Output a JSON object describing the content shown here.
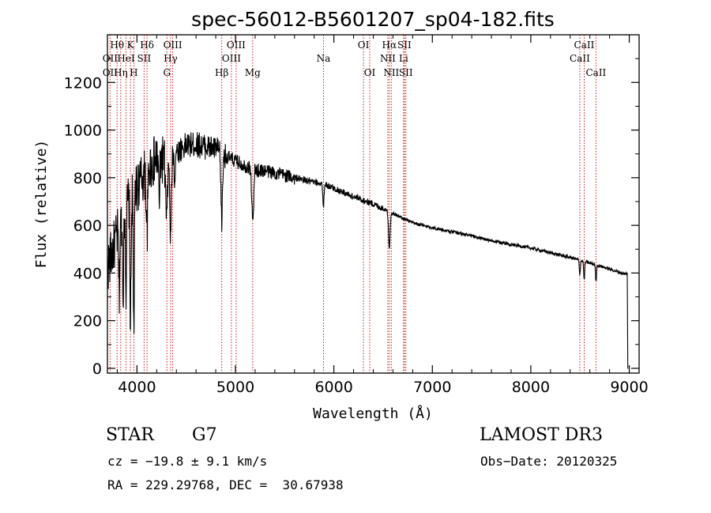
{
  "chart_data": {
    "type": "line",
    "title": "spec-56012-B5601207_sp04-182.fits",
    "xlabel": "Wavelength (Å)",
    "ylabel": "Flux (relative)",
    "xlim": [
      3700,
      9100
    ],
    "ylim": [
      -20,
      1400
    ],
    "x_ticks": [
      4000,
      5000,
      6000,
      7000,
      8000,
      9000
    ],
    "y_ticks": [
      0,
      200,
      400,
      600,
      800,
      1000,
      1200
    ],
    "series": [
      {
        "name": "flux",
        "continuum_knots": [
          [
            3700,
            420
          ],
          [
            3800,
            560
          ],
          [
            3900,
            700
          ],
          [
            4000,
            760
          ],
          [
            4100,
            830
          ],
          [
            4200,
            880
          ],
          [
            4300,
            880
          ],
          [
            4400,
            910
          ],
          [
            4500,
            935
          ],
          [
            4600,
            940
          ],
          [
            4700,
            930
          ],
          [
            4800,
            920
          ],
          [
            4900,
            890
          ],
          [
            5000,
            870
          ],
          [
            5100,
            850
          ],
          [
            5200,
            830
          ],
          [
            5300,
            830
          ],
          [
            5400,
            820
          ],
          [
            5500,
            810
          ],
          [
            5600,
            800
          ],
          [
            5700,
            790
          ],
          [
            5800,
            780
          ],
          [
            5900,
            775
          ],
          [
            6000,
            755
          ],
          [
            6200,
            720
          ],
          [
            6400,
            690
          ],
          [
            6600,
            650
          ],
          [
            6800,
            610
          ],
          [
            7000,
            590
          ],
          [
            7300,
            565
          ],
          [
            7600,
            535
          ],
          [
            8000,
            505
          ],
          [
            8400,
            465
          ],
          [
            8700,
            430
          ],
          [
            8960,
            395
          ],
          [
            8980,
            400
          ]
        ],
        "absorption_lines": [
          [
            3820,
            260,
            6
          ],
          [
            3860,
            300,
            6
          ],
          [
            3889,
            350,
            5
          ],
          [
            3934,
            520,
            6
          ],
          [
            3968,
            560,
            6
          ],
          [
            4102,
            250,
            8
          ],
          [
            4226,
            180,
            6
          ],
          [
            4300,
            250,
            10
          ],
          [
            4341,
            350,
            8
          ],
          [
            4383,
            120,
            5
          ],
          [
            4861,
            280,
            8
          ],
          [
            5172,
            180,
            8
          ],
          [
            5183,
            120,
            5
          ],
          [
            5893,
            100,
            6
          ],
          [
            6563,
            150,
            8
          ],
          [
            8498,
            60,
            5
          ],
          [
            8542,
            80,
            5
          ],
          [
            8662,
            70,
            5
          ]
        ],
        "noise": [
          [
            3700,
            4300,
            110
          ],
          [
            4300,
            4900,
            55
          ],
          [
            4900,
            5600,
            30
          ],
          [
            5600,
            6500,
            14
          ],
          [
            6500,
            9000,
            7
          ]
        ]
      }
    ],
    "spectral_lines": [
      {
        "name": "Hθ",
        "x": 3798,
        "row": 1
      },
      {
        "name": "OII",
        "x": 3727,
        "row": 2
      },
      {
        "name": "OII",
        "x": 3727,
        "row": 3
      },
      {
        "name": "Hη",
        "x": 3835,
        "row": 3
      },
      {
        "name": "HeI",
        "x": 3889,
        "row": 2
      },
      {
        "name": "K",
        "x": 3934,
        "row": 1
      },
      {
        "name": "SII",
        "x": 4072,
        "row": 2
      },
      {
        "name": "H",
        "x": 3968,
        "row": 3
      },
      {
        "name": "Hδ",
        "x": 4102,
        "row": 1
      },
      {
        "name": "OIII",
        "x": 4363,
        "row": 1
      },
      {
        "name": "Hγ",
        "x": 4341,
        "row": 2
      },
      {
        "name": "G",
        "x": 4304,
        "row": 3
      },
      {
        "name": "Hβ",
        "x": 4861,
        "row": 3
      },
      {
        "name": "OIII",
        "x": 5007,
        "row": 1
      },
      {
        "name": "OIII",
        "x": 4959,
        "row": 2
      },
      {
        "name": "Mg",
        "x": 5175,
        "row": 3
      },
      {
        "name": "Na",
        "x": 5894,
        "row": 2
      },
      {
        "name": "OI",
        "x": 6300,
        "row": 1
      },
      {
        "name": "OI",
        "x": 6364,
        "row": 3
      },
      {
        "name": "Hα",
        "x": 6563,
        "row": 1
      },
      {
        "name": "NII",
        "x": 6548,
        "row": 2
      },
      {
        "name": "NII",
        "x": 6583,
        "row": 3
      },
      {
        "name": "SII",
        "x": 6716,
        "row": 1
      },
      {
        "name": "Li",
        "x": 6708,
        "row": 2
      },
      {
        "name": "SII",
        "x": 6731,
        "row": 3
      },
      {
        "name": "CaII",
        "x": 8542,
        "row": 1
      },
      {
        "name": "CaII",
        "x": 8498,
        "row": 2
      },
      {
        "name": "CaII",
        "x": 8662,
        "row": 3
      }
    ],
    "marker_lines": [
      3727,
      3798,
      3835,
      3889,
      3934,
      3968,
      4072,
      4102,
      4304,
      4341,
      4363,
      4861,
      4959,
      5007,
      5175,
      5894,
      6300,
      6364,
      6548,
      6563,
      6583,
      6708,
      6716,
      6731,
      8498,
      8542,
      8662
    ],
    "colors": {
      "spectrum": "#000000",
      "marker": "#cc0000",
      "axes": "#000000"
    }
  },
  "info": {
    "class": "STAR",
    "subclass": "G7",
    "survey": "LAMOST DR3",
    "redshift": "cz = −19.8 ± 9.1 km/s",
    "obs_date": "Obs−Date: 20120325",
    "coords": "RA = 229.29768, DEC =  30.67938"
  }
}
